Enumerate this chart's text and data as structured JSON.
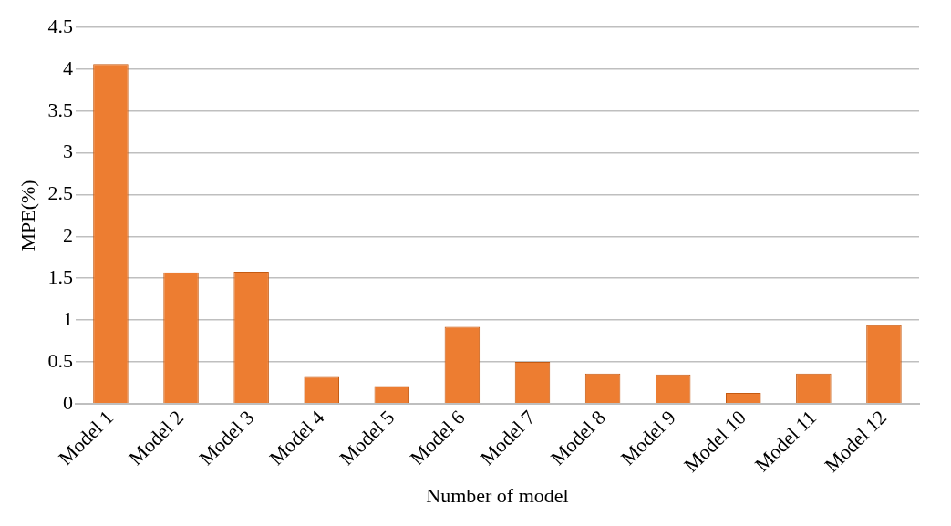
{
  "chart_data": {
    "type": "bar",
    "xlabel": "Number of model",
    "ylabel": "MPE(%)",
    "categories": [
      "Model 1",
      "Model 2",
      "Model 3",
      "Model 4",
      "Model 5",
      "Model 6",
      "Model 7",
      "Model 8",
      "Model 9",
      "Model 10",
      "Model 11",
      "Model 12"
    ],
    "values": [
      4.06,
      1.57,
      1.58,
      0.32,
      0.21,
      0.92,
      0.5,
      0.36,
      0.35,
      0.13,
      0.36,
      0.94
    ],
    "color": "#ed7d31",
    "ylim": [
      0,
      4.5
    ],
    "yticks": [
      0,
      0.5,
      1,
      1.5,
      2,
      2.5,
      3,
      3.5,
      4,
      4.5
    ],
    "grid": "y"
  }
}
